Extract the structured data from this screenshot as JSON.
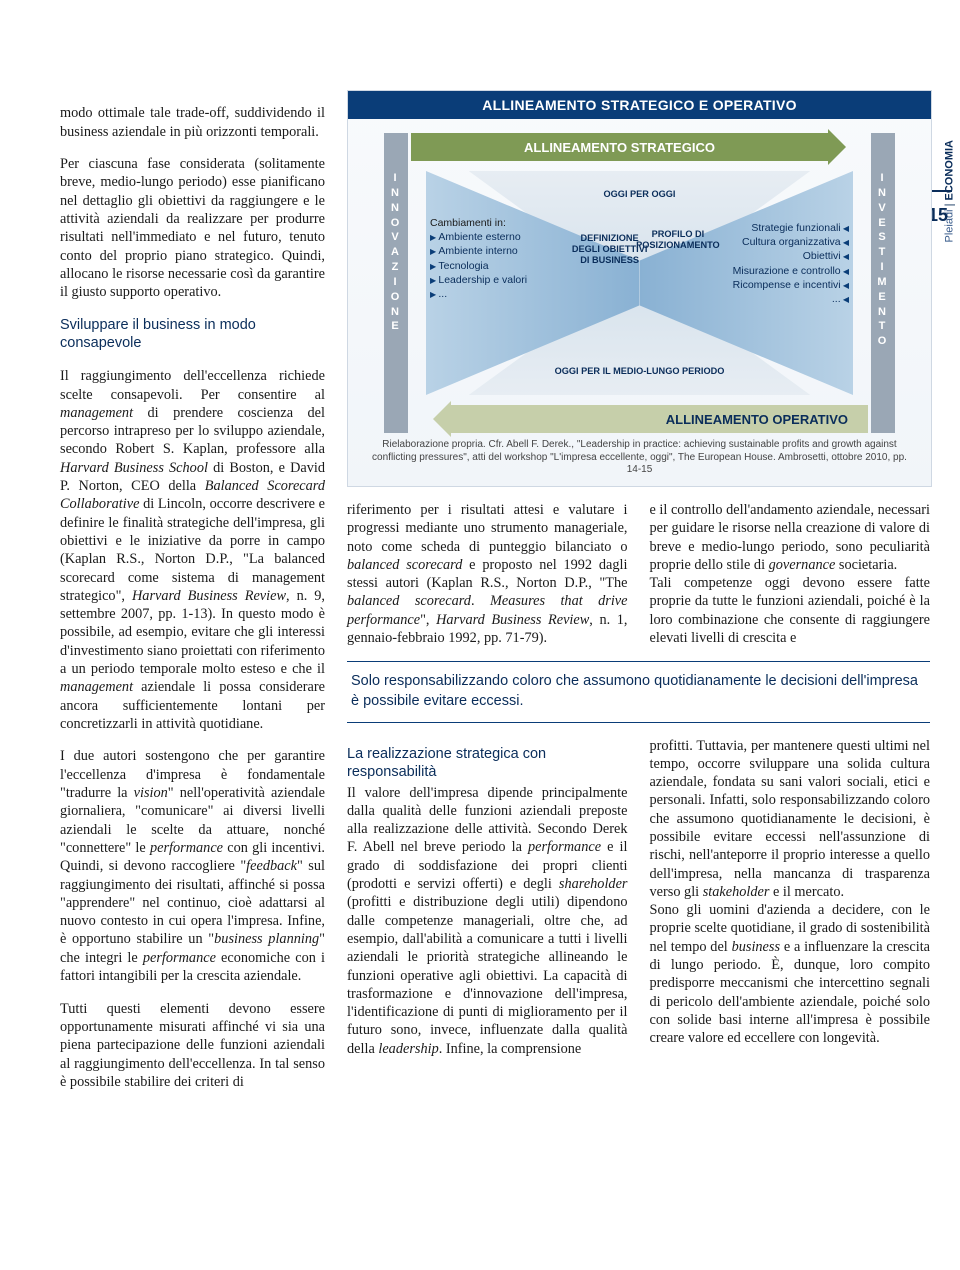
{
  "rail": {
    "section1": "Pleiadi",
    "section2": "ECONOMIA",
    "pagenum": "15"
  },
  "left": {
    "p1": "modo ottimale tale trade-off, suddividendo il business aziendale in più orizzonti temporali.",
    "p2": "Per ciascuna fase considerata (solitamente breve, medio-lungo periodo) esse pianificano nel dettaglio gli obiettivi da raggiungere e le attività aziendali da realizzare per produrre risultati nell'immediato e nel futuro, tenuto conto del proprio piano strategico. Quindi, allocano le risorse necessarie così da garantire il giusto supporto operativo.",
    "h1": "Sviluppare il business in modo consapevole",
    "p3a": "Il raggiungimento dell'eccellenza richiede scelte consapevoli. Per consentire al ",
    "p3b": "management",
    "p3c": " di prendere coscienza del percorso intrapreso per lo sviluppo aziendale, secondo Robert S. Kaplan, professore alla ",
    "p3d": "Harvard Business School",
    "p3e": " di Boston, e David P. Norton, CEO della ",
    "p3f": "Balanced Scorecard Collaborative",
    "p3g": " di Lincoln, occorre descrivere e definire le finalità strategiche dell'impresa, gli obiettivi e le iniziative da porre in campo (Kaplan R.S., Norton D.P., \"La balanced scorecard come sistema di management strategico\", ",
    "p3h": "Harvard Business Review",
    "p3i": ", n. 9, settembre 2007, pp. 1-13). In questo modo è possibile, ad esempio, evitare che gli interessi d'investimento siano proiettati con riferimento a un periodo temporale molto esteso e che il ",
    "p3j": "management",
    "p3k": " aziendale li possa considerare ancora sufficientemente lontani per concretizzarli in attività quotidiane.",
    "p4a": "I due autori sostengono che per garantire l'eccellenza d'impresa è fondamentale \"tradurre la ",
    "p4b": "vision",
    "p4c": "\" nell'operatività aziendale giornaliera, \"comunicare\" ai diversi livelli aziendali le scelte da attuare, nonché \"connettere\" le ",
    "p4d": "performance",
    "p4e": " con gli incentivi. Quindi, si devono raccogliere \"",
    "p4f": "feedback",
    "p4g": "\" sul raggiungimento dei risultati, affinché si possa \"apprendere\" nel continuo, cioè adattarsi al nuovo contesto in cui opera l'impresa. Infine, è opportuno stabilire un \"",
    "p4h": "business planning",
    "p4i": "\" che integri le ",
    "p4j": "performance",
    "p4k": " economiche con i fattori intangibili per la crescita aziendale.",
    "p5": "Tutti questi elementi devono essere opportunamente misurati affinché vi sia una piena partecipazione delle funzioni aziendali al raggiungimento dell'eccellenza. In tal senso è possibile stabilire dei criteri di"
  },
  "diagram": {
    "title": "ALLINEAMENTO STRATEGICO E OPERATIVO",
    "top_band": "ALLINEAMENTO STRATEGICO",
    "bottom_band": "ALLINEAMENTO OPERATIVO",
    "pillar_left": "INNOVAZIONE",
    "pillar_right": "INVESTIMENTO",
    "left_header": "Cambiamenti in:",
    "left_items": [
      "Ambiente esterno",
      "Ambiente interno",
      "Tecnologia",
      "Leadership e valori",
      "..."
    ],
    "right_items": [
      "Strategie funzionali",
      "Cultura organizzativa",
      "Obiettivi",
      "Misurazione e controllo",
      "Ricompense e incentivi",
      "..."
    ],
    "center_top": "OGGI PER OGGI",
    "center_mid_left": "DEFINIZIONE DEGLI OBIETTIVI DI BUSINESS",
    "center_mid_right": "PROFILO DI POSIZIONAMENTO",
    "center_bottom": "OGGI PER IL MEDIO-LUNGO PERIODO",
    "caption": "Rielaborazione propria. Cfr. Abell F. Derek., \"Leadership in practice: achieving sustainable profits and growth against conflicting pressures\", atti del workshop \"L'impresa eccellente, oggi\", The European House. Ambrosetti, ottobre 2010, pp. 14-15",
    "colors": {
      "title_bg": "#0a3d78",
      "band_top_bg": "#7f9a55",
      "band_bottom_bg": "#c6cfaa",
      "pillar_bg": "#9aa7b5",
      "funnel_light": "#b9d2e6",
      "funnel_dark": "#89b1d3",
      "text": "#0a2d5a"
    }
  },
  "mid": {
    "c1a": "riferimento per i risultati attesi e valutare i progressi mediante uno strumento manageriale, noto come scheda di punteggio bilanciato o ",
    "c1b": "balanced scorecard",
    "c1c": " e proposto nel 1992 dagli stessi autori (Kaplan R.S., Norton D.P., \"The ",
    "c1d": "balanced scorecard",
    "c1e": ". ",
    "c1f": "Measures that drive performance",
    "c1g": "\", ",
    "c1h": "Harvard Business Review",
    "c1i": ", n. 1, gennaio-febbraio 1992, pp. 71-79).",
    "c2a": "e il controllo dell'andamento aziendale, necessari per guidare le risorse nella creazione di valore di breve e medio-lungo periodo, sono peculiarità proprie dello stile di ",
    "c2b": "governance",
    "c2c": " societaria.",
    "c2d": "Tali competenze oggi devono essere fatte proprie da tutte le funzioni aziendali, poiché è la loro combinazione che consente di raggiungere elevati livelli di crescita e"
  },
  "pullquote": "Solo responsabilizzando coloro che assumono quotidianamente le decisioni dell'impresa è possibile evitare eccessi.",
  "bottom": {
    "h2": "La realizzazione strategica con responsabilità",
    "b1a": "Il valore dell'impresa dipende principalmente dalla qualità delle funzioni aziendali preposte alla realizzazione delle attività. Secondo Derek F. Abell nel breve periodo la ",
    "b1b": "performance",
    "b1c": " e il grado di soddisfazione dei propri clienti (prodotti e servizi offerti) e degli ",
    "b1d": "shareholder",
    "b1e": " (profitti e distribuzione degli utili) dipendono dalle competenze manageriali, oltre che, ad esempio, dall'abilità a comunicare a tutti i livelli aziendali le priorità strategiche allineando le funzioni operative agli obiettivi. La capacità di trasformazione e d'innovazione dell'impresa, l'identificazione di punti di miglioramento per il futuro sono, invece, influenzate dalla qualità della ",
    "b1f": "leadership",
    "b1g": ". Infine, la comprensione",
    "b2a": "profitti. Tuttavia, per mantenere questi ultimi nel tempo, occorre sviluppare una solida cultura aziendale, fondata su sani valori sociali, etici e personali. Infatti, solo responsabilizzando coloro che assumono quotidianamente le decisioni, è possibile evitare eccessi nell'assunzione di rischi, nell'anteporre il proprio interesse a quello dell'impresa, nella mancanza di trasparenza verso gli ",
    "b2b": "stakeholder",
    "b2c": " e il mercato.",
    "b2d": "Sono gli uomini d'azienda a decidere, con le proprie scelte quotidiane, il grado di sostenibilità nel tempo del ",
    "b2e": "business",
    "b2f": " e a influenzare la crescita di lungo periodo. È, dunque, loro compito predisporre meccanismi che intercettino segnali di pericolo dell'ambiente aziendale, poiché solo con solide basi interne all'impresa è possibile creare valore ed eccellere con longevità."
  }
}
